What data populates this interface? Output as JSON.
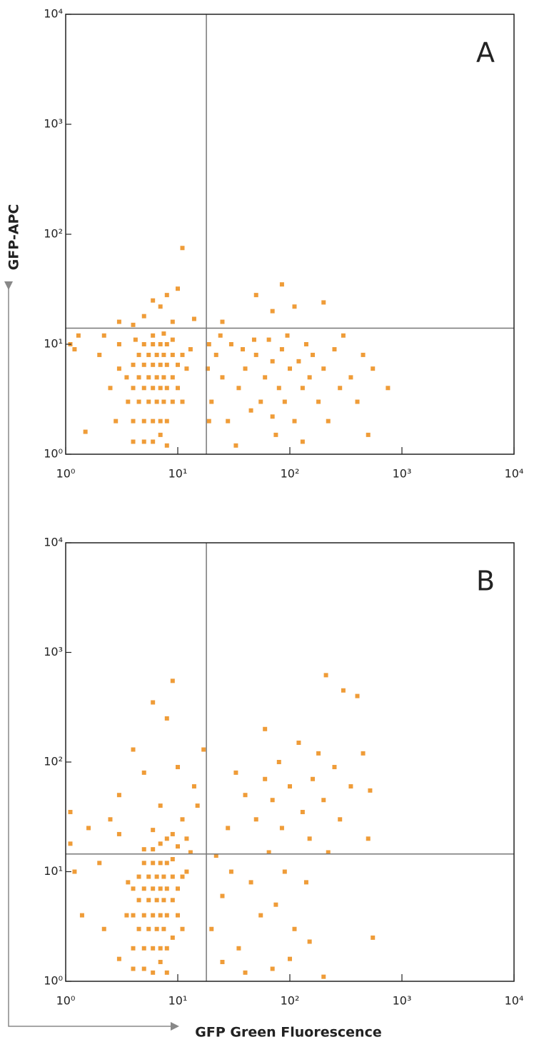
{
  "chart_data": [
    {
      "type": "scatter",
      "panel_label": "A",
      "ylabel": "GFP-APC",
      "color": "#ef9c38",
      "log_x": true,
      "log_y": true,
      "xlim": [
        1,
        10000
      ],
      "ylim": [
        1,
        10000
      ],
      "xticks": [
        {
          "value": 1,
          "label": "10⁰"
        },
        {
          "value": 10,
          "label": "10¹"
        },
        {
          "value": 100,
          "label": "10²"
        },
        {
          "value": 1000,
          "label": "10³"
        },
        {
          "value": 10000,
          "label": "10⁴"
        }
      ],
      "yticks": [
        {
          "value": 1,
          "label": "10⁰"
        },
        {
          "value": 10,
          "label": "10¹"
        },
        {
          "value": 100,
          "label": "10²"
        },
        {
          "value": 1000,
          "label": "10³"
        },
        {
          "value": 10000,
          "label": "10⁴"
        }
      ],
      "quadrant": {
        "x": 18,
        "y": 14
      },
      "points": [
        [
          4,
          2
        ],
        [
          5,
          2
        ],
        [
          6,
          2
        ],
        [
          7,
          2
        ],
        [
          8,
          2
        ],
        [
          4.5,
          3
        ],
        [
          5.5,
          3
        ],
        [
          6.5,
          3
        ],
        [
          7.5,
          3
        ],
        [
          9,
          3
        ],
        [
          4,
          4
        ],
        [
          5,
          4
        ],
        [
          6,
          4
        ],
        [
          7,
          4
        ],
        [
          8,
          4
        ],
        [
          10,
          4
        ],
        [
          4.5,
          5
        ],
        [
          5.5,
          5
        ],
        [
          6.5,
          5
        ],
        [
          7.5,
          5
        ],
        [
          9,
          5
        ],
        [
          4,
          6.5
        ],
        [
          5,
          6.5
        ],
        [
          6,
          6.5
        ],
        [
          7,
          6.5
        ],
        [
          8,
          6.5
        ],
        [
          10,
          6.5
        ],
        [
          4.5,
          8
        ],
        [
          5.5,
          8
        ],
        [
          6.5,
          8
        ],
        [
          7.5,
          8
        ],
        [
          9,
          8
        ],
        [
          11,
          8
        ],
        [
          5,
          10
        ],
        [
          6,
          10
        ],
        [
          7,
          10
        ],
        [
          8,
          10
        ],
        [
          9,
          11
        ],
        [
          4,
          1.3
        ],
        [
          5,
          1.3
        ],
        [
          6,
          1.3
        ],
        [
          7,
          1.5
        ],
        [
          8,
          1.2
        ],
        [
          3.5,
          5
        ],
        [
          3.6,
          3
        ],
        [
          12,
          6
        ],
        [
          13,
          9
        ],
        [
          11,
          3
        ],
        [
          4.2,
          11
        ],
        [
          6,
          12
        ],
        [
          7.5,
          12.5
        ],
        [
          1.1,
          10
        ],
        [
          1.3,
          12
        ],
        [
          1.5,
          1.6
        ],
        [
          2,
          8
        ],
        [
          2.2,
          12
        ],
        [
          2.5,
          4
        ],
        [
          3,
          6
        ],
        [
          3,
          10
        ],
        [
          2.8,
          2
        ],
        [
          1.2,
          9
        ],
        [
          3,
          16
        ],
        [
          5,
          18
        ],
        [
          7,
          22
        ],
        [
          8,
          28
        ],
        [
          6,
          25
        ],
        [
          9,
          16
        ],
        [
          4,
          15
        ],
        [
          11,
          75
        ],
        [
          14,
          17
        ],
        [
          25,
          16
        ],
        [
          50,
          28
        ],
        [
          70,
          20
        ],
        [
          85,
          35
        ],
        [
          200,
          24
        ],
        [
          110,
          22
        ],
        [
          10,
          32
        ],
        [
          20,
          3
        ],
        [
          22,
          8
        ],
        [
          25,
          5
        ],
        [
          28,
          2
        ],
        [
          30,
          10
        ],
        [
          35,
          4
        ],
        [
          40,
          6
        ],
        [
          45,
          2.5
        ],
        [
          50,
          8
        ],
        [
          55,
          3
        ],
        [
          60,
          5
        ],
        [
          65,
          11
        ],
        [
          70,
          7
        ],
        [
          75,
          1.5
        ],
        [
          80,
          4
        ],
        [
          85,
          9
        ],
        [
          90,
          3
        ],
        [
          100,
          6
        ],
        [
          110,
          2
        ],
        [
          120,
          7
        ],
        [
          130,
          4
        ],
        [
          140,
          10
        ],
        [
          150,
          5
        ],
        [
          160,
          8
        ],
        [
          180,
          3
        ],
        [
          200,
          6
        ],
        [
          220,
          2
        ],
        [
          250,
          9
        ],
        [
          280,
          4
        ],
        [
          300,
          12
        ],
        [
          350,
          5
        ],
        [
          400,
          3
        ],
        [
          450,
          8
        ],
        [
          500,
          1.5
        ],
        [
          550,
          6
        ],
        [
          750,
          4
        ],
        [
          24,
          12
        ],
        [
          33,
          1.2
        ],
        [
          48,
          11
        ],
        [
          95,
          12
        ],
        [
          70,
          2.2
        ],
        [
          130,
          1.3
        ],
        [
          38,
          9
        ],
        [
          18.5,
          6
        ],
        [
          19,
          2
        ],
        [
          19,
          10
        ]
      ]
    },
    {
      "type": "scatter",
      "panel_label": "B",
      "xlabel": "GFP Green Fluorescence",
      "color": "#ef9c38",
      "log_x": true,
      "log_y": true,
      "xlim": [
        1,
        10000
      ],
      "ylim": [
        1,
        10000
      ],
      "xticks": [
        {
          "value": 1,
          "label": "10⁰"
        },
        {
          "value": 10,
          "label": "10¹"
        },
        {
          "value": 100,
          "label": "10²"
        },
        {
          "value": 1000,
          "label": "10³"
        },
        {
          "value": 10000,
          "label": "10⁴"
        }
      ],
      "yticks": [
        {
          "value": 1,
          "label": "10⁰"
        },
        {
          "value": 10,
          "label": "10¹"
        },
        {
          "value": 100,
          "label": "10²"
        },
        {
          "value": 1000,
          "label": "10³"
        },
        {
          "value": 10000,
          "label": "10⁴"
        }
      ],
      "quadrant": {
        "x": 18,
        "y": 14.5
      },
      "points": [
        [
          4,
          2
        ],
        [
          5,
          2
        ],
        [
          6,
          2
        ],
        [
          7,
          2
        ],
        [
          8,
          2
        ],
        [
          9,
          2.5
        ],
        [
          4.5,
          3
        ],
        [
          5.5,
          3
        ],
        [
          6.5,
          3
        ],
        [
          7.5,
          3
        ],
        [
          4,
          4
        ],
        [
          5,
          4
        ],
        [
          6,
          4
        ],
        [
          7,
          4
        ],
        [
          8,
          4
        ],
        [
          10,
          4
        ],
        [
          4.5,
          5.5
        ],
        [
          5.5,
          5.5
        ],
        [
          6.5,
          5.5
        ],
        [
          7.5,
          5.5
        ],
        [
          9,
          5.5
        ],
        [
          4,
          7
        ],
        [
          5,
          7
        ],
        [
          6,
          7
        ],
        [
          7,
          7
        ],
        [
          8,
          7
        ],
        [
          10,
          7
        ],
        [
          4.5,
          9
        ],
        [
          5.5,
          9
        ],
        [
          6.5,
          9
        ],
        [
          7.5,
          9
        ],
        [
          9,
          9
        ],
        [
          11,
          9
        ],
        [
          5,
          12
        ],
        [
          6,
          12
        ],
        [
          7,
          12
        ],
        [
          8,
          12
        ],
        [
          9,
          13
        ],
        [
          5,
          16
        ],
        [
          6,
          16
        ],
        [
          7,
          18
        ],
        [
          8,
          20
        ],
        [
          9,
          22
        ],
        [
          6,
          24
        ],
        [
          10,
          17
        ],
        [
          4,
          1.3
        ],
        [
          5,
          1.3
        ],
        [
          6,
          1.2
        ],
        [
          7,
          1.5
        ],
        [
          8,
          1.2
        ],
        [
          3.5,
          4
        ],
        [
          3.6,
          8
        ],
        [
          12,
          10
        ],
        [
          13,
          15
        ],
        [
          11,
          3
        ],
        [
          12,
          20
        ],
        [
          1.1,
          18
        ],
        [
          1.2,
          10
        ],
        [
          1.4,
          4
        ],
        [
          1.6,
          25
        ],
        [
          2,
          12
        ],
        [
          2.2,
          3
        ],
        [
          2.5,
          30
        ],
        [
          3,
          22
        ],
        [
          3,
          1.6
        ],
        [
          1.1,
          35
        ],
        [
          3,
          50
        ],
        [
          4,
          130
        ],
        [
          5,
          80
        ],
        [
          6,
          350
        ],
        [
          7,
          40
        ],
        [
          8,
          250
        ],
        [
          10,
          90
        ],
        [
          9,
          550
        ],
        [
          11,
          30
        ],
        [
          17,
          130
        ],
        [
          15,
          40
        ],
        [
          14,
          60
        ],
        [
          20,
          3
        ],
        [
          22,
          14
        ],
        [
          25,
          6
        ],
        [
          28,
          25
        ],
        [
          30,
          10
        ],
        [
          35,
          2
        ],
        [
          40,
          50
        ],
        [
          45,
          8
        ],
        [
          50,
          30
        ],
        [
          55,
          4
        ],
        [
          60,
          70
        ],
        [
          65,
          15
        ],
        [
          70,
          45
        ],
        [
          75,
          5
        ],
        [
          80,
          100
        ],
        [
          85,
          25
        ],
        [
          90,
          10
        ],
        [
          100,
          60
        ],
        [
          110,
          3
        ],
        [
          120,
          150
        ],
        [
          130,
          35
        ],
        [
          140,
          8
        ],
        [
          150,
          20
        ],
        [
          160,
          70
        ],
        [
          180,
          120
        ],
        [
          200,
          45
        ],
        [
          210,
          620
        ],
        [
          220,
          15
        ],
        [
          250,
          90
        ],
        [
          280,
          30
        ],
        [
          300,
          450
        ],
        [
          350,
          60
        ],
        [
          400,
          400
        ],
        [
          450,
          120
        ],
        [
          500,
          20
        ],
        [
          550,
          2.5
        ],
        [
          520,
          55
        ],
        [
          40,
          1.2
        ],
        [
          33,
          80
        ],
        [
          60,
          200
        ],
        [
          200,
          1.1
        ],
        [
          25,
          1.5
        ],
        [
          100,
          1.6
        ],
        [
          150,
          2.3
        ],
        [
          70,
          1.3
        ]
      ]
    }
  ]
}
